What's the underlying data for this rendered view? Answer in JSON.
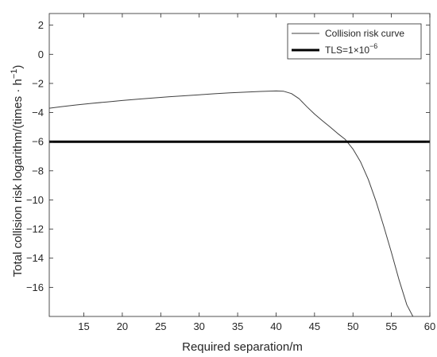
{
  "chart_data": {
    "type": "line",
    "title": "",
    "xlabel": "Required separation/m",
    "ylabel_main": "Total collision risk logarithm/(times · h",
    "ylabel_sup": "−1",
    "ylabel_close": ")",
    "xlim": [
      10.5,
      60
    ],
    "ylim": [
      -18,
      2.8
    ],
    "xticks": [
      15,
      20,
      25,
      30,
      35,
      40,
      45,
      50,
      55,
      60
    ],
    "yticks": [
      2,
      0,
      -2,
      -4,
      -6,
      -8,
      -10,
      -12,
      -14,
      -16
    ],
    "grid": false,
    "legend_position": "top-right",
    "series": [
      {
        "name": "Collision risk curve",
        "color": "#404040",
        "x": [
          10.5,
          12,
          14,
          16,
          18,
          20,
          22,
          24,
          26,
          28,
          30,
          32,
          34,
          36,
          38,
          40,
          41,
          42,
          43,
          44,
          45,
          46,
          47,
          48,
          49,
          50,
          51,
          52,
          53,
          54,
          55,
          56,
          57,
          58
        ],
        "y": [
          -3.7,
          -3.6,
          -3.48,
          -3.37,
          -3.27,
          -3.17,
          -3.08,
          -3.0,
          -2.92,
          -2.85,
          -2.78,
          -2.71,
          -2.65,
          -2.6,
          -2.55,
          -2.52,
          -2.54,
          -2.7,
          -3.05,
          -3.6,
          -4.1,
          -4.55,
          -4.98,
          -5.43,
          -5.85,
          -6.5,
          -7.4,
          -8.6,
          -10.1,
          -11.8,
          -13.6,
          -15.5,
          -17.2,
          -18.2
        ]
      },
      {
        "name": "TLS=1×10",
        "name_sup": "−6",
        "color": "#000000",
        "x": [
          10.5,
          60
        ],
        "y": [
          -6,
          -6
        ]
      }
    ]
  }
}
